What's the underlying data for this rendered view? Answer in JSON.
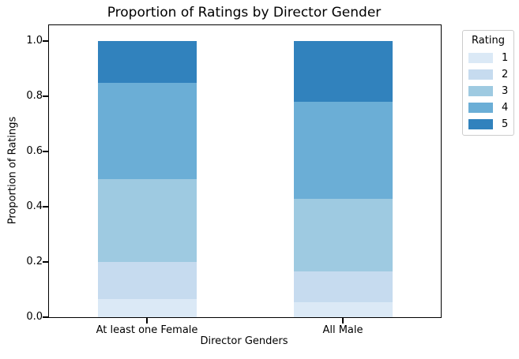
{
  "chart_data": {
    "type": "bar",
    "stacked": true,
    "title": "Proportion of Ratings by Director Gender",
    "xlabel": "Director Genders",
    "ylabel": "Proportion of Ratings",
    "categories": [
      "At least one Female",
      "All Male"
    ],
    "series": [
      {
        "name": "1",
        "color": "#dbe9f6",
        "values": [
          0.065,
          0.055
        ]
      },
      {
        "name": "2",
        "color": "#c6dbef",
        "values": [
          0.135,
          0.11
        ]
      },
      {
        "name": "3",
        "color": "#9ecae1",
        "values": [
          0.3,
          0.265
        ]
      },
      {
        "name": "4",
        "color": "#6baed6",
        "values": [
          0.35,
          0.35
        ]
      },
      {
        "name": "5",
        "color": "#3182bd",
        "values": [
          0.15,
          0.22
        ]
      }
    ],
    "legend_title": "Rating",
    "legend_position": "outside upper right",
    "ylim": [
      0,
      1.055
    ],
    "yticks": [
      "0.0",
      "0.2",
      "0.4",
      "0.6",
      "0.8",
      "1.0"
    ],
    "grid": false,
    "axis_color": "#000000",
    "legend_border_color": "#cccccc",
    "background_color": "#ffffff"
  }
}
